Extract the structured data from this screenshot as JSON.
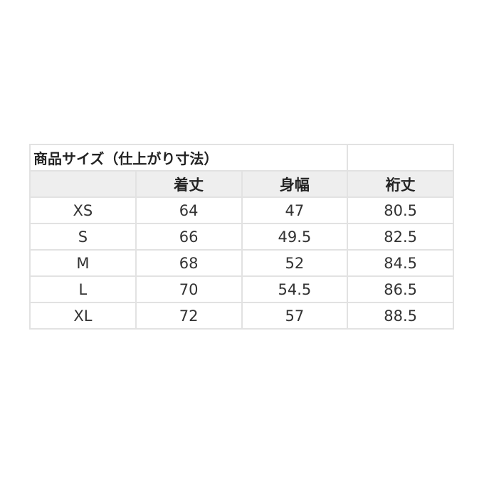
{
  "title": "商品サイズ（仕上がり寸法）",
  "headers": [
    "",
    "着丈",
    "身幅",
    "裄丈"
  ],
  "rows": [
    [
      "XS",
      "64",
      "47",
      "80.5"
    ],
    [
      "S",
      "66",
      "49.5",
      "82.5"
    ],
    [
      "M",
      "68",
      "52",
      "84.5"
    ],
    [
      "L",
      "70",
      "54.5",
      "86.5"
    ],
    [
      "XL",
      "72",
      "57",
      "88.5"
    ]
  ]
}
